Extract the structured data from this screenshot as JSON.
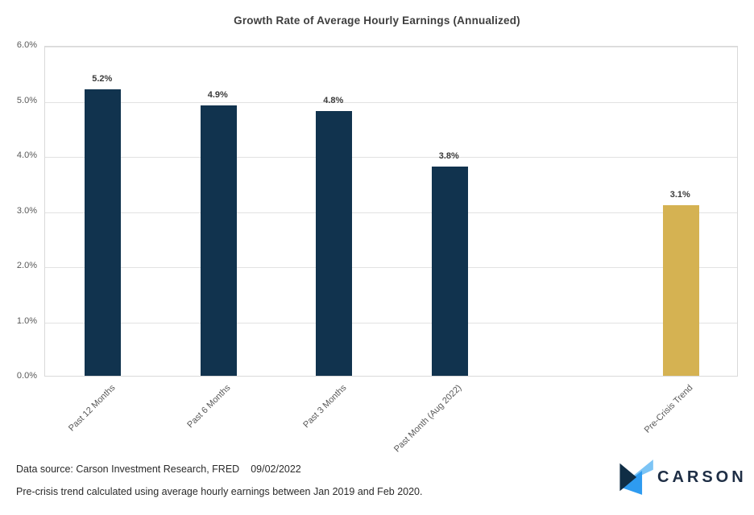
{
  "chart_data": {
    "type": "bar",
    "title": "Growth Rate of Average Hourly Earnings (Annualized)",
    "categories": [
      "Past 12 Months",
      "Past 6 Months",
      "Past 3 Months",
      "Past Month (Aug 2022)",
      "Pre-Crisis Trend"
    ],
    "values": [
      5.2,
      4.9,
      4.8,
      3.8,
      3.1
    ],
    "data_labels": [
      "5.2%",
      "4.9%",
      "4.8%",
      "3.8%",
      "3.1%"
    ],
    "bar_colors": [
      "#11334e",
      "#11334e",
      "#11334e",
      "#11334e",
      "#d5b252"
    ],
    "slot_index": [
      0,
      1,
      2,
      3,
      5
    ],
    "total_slots": 6,
    "ylim": [
      0,
      6
    ],
    "yticks": [
      0,
      1,
      2,
      3,
      4,
      5,
      6
    ],
    "ytick_labels": [
      "0.0%",
      "1.0%",
      "2.0%",
      "3.0%",
      "4.0%",
      "5.0%",
      "6.0%"
    ],
    "grid": true,
    "legend_position": "none",
    "xlabel": "",
    "ylabel": ""
  },
  "footer": {
    "source": "Data source: Carson Investment Research, FRED",
    "date": "09/02/2022",
    "note": "Pre-crisis trend calculated using average hourly earnings between Jan 2019 and Feb 2020."
  },
  "logo": {
    "text": "CARSON",
    "icon": "carson-chevron-icon",
    "colors": {
      "navy": "#0f2d45",
      "light_blue": "#7cc4f5",
      "blue": "#2e9bf0",
      "text": "#1e2e45"
    }
  },
  "colors": {
    "bar_navy": "#11334e",
    "bar_gold": "#d5b252",
    "gridline": "#e2e2e2",
    "axis_text": "#595959",
    "title_text": "#3f3f3f"
  }
}
